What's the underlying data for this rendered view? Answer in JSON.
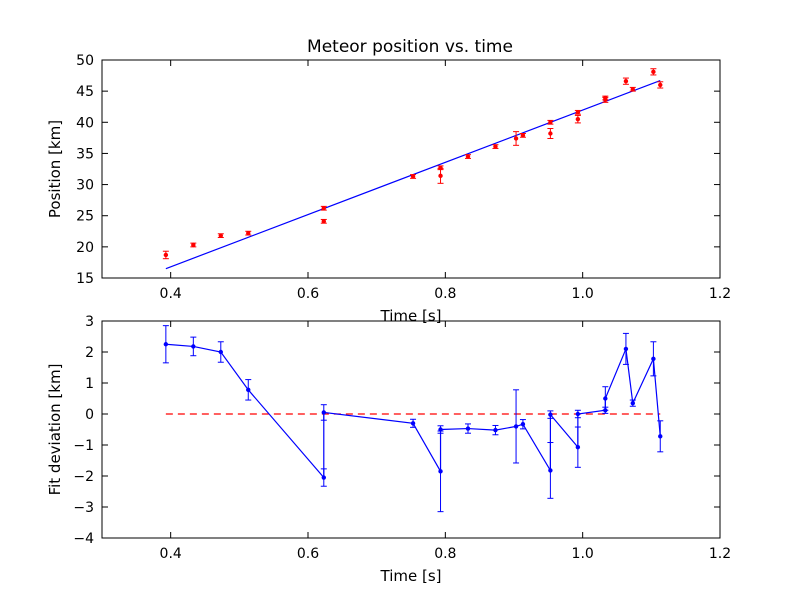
{
  "chart_data": [
    {
      "type": "scatter",
      "title": "Meteor position vs. time",
      "xlabel": "Time [s]",
      "ylabel": "Position [km]",
      "xlim": [
        0.3,
        1.2
      ],
      "ylim": [
        15,
        50
      ],
      "xticks": [
        0.4,
        0.6,
        0.8,
        1.0,
        1.2
      ],
      "xtick_labels": [
        "0.4",
        "0.6",
        "0.8",
        "1.0",
        "1.2"
      ],
      "yticks": [
        15,
        20,
        25,
        30,
        35,
        40,
        45,
        50
      ],
      "ytick_labels": [
        "15",
        "20",
        "25",
        "30",
        "35",
        "40",
        "45",
        "50"
      ],
      "grid": false,
      "colors": {
        "points": "#ff0000",
        "fit": "#0000ff"
      },
      "series": [
        {
          "kind": "errorbar-points",
          "x": [
            0.393,
            0.433,
            0.473,
            0.513,
            0.623,
            0.623,
            0.753,
            0.793,
            0.793,
            0.833,
            0.873,
            0.903,
            0.913,
            0.953,
            0.953,
            0.993,
            0.993,
            1.033,
            1.033,
            1.063,
            1.073,
            1.103,
            1.113
          ],
          "y": [
            18.7,
            20.3,
            21.8,
            22.2,
            24.1,
            26.2,
            31.3,
            31.4,
            32.7,
            34.5,
            36.1,
            37.4,
            37.9,
            38.2,
            40.0,
            40.5,
            41.6,
            43.6,
            43.9,
            46.6,
            45.3,
            48.1,
            46.0
          ],
          "yerr": [
            0.6,
            0.3,
            0.3,
            0.3,
            0.3,
            0.3,
            0.3,
            1.2,
            0.3,
            0.3,
            0.3,
            1.1,
            0.3,
            0.8,
            0.3,
            0.6,
            0.3,
            0.4,
            0.3,
            0.5,
            0.3,
            0.5,
            0.5
          ]
        },
        {
          "kind": "fit-line",
          "x": [
            0.393,
            1.113
          ],
          "y": [
            16.5,
            46.7
          ]
        }
      ]
    },
    {
      "type": "line",
      "title": "",
      "xlabel": "Time [s]",
      "ylabel": "Fit deviation [km]",
      "xlim": [
        0.3,
        1.2
      ],
      "ylim": [
        -4,
        3
      ],
      "xticks": [
        0.4,
        0.6,
        0.8,
        1.0,
        1.2
      ],
      "xtick_labels": [
        "0.4",
        "0.6",
        "0.8",
        "1.0",
        "1.2"
      ],
      "yticks": [
        -4,
        -3,
        -2,
        -1,
        0,
        1,
        2,
        3
      ],
      "ytick_labels": [
        "−4",
        "−3",
        "−2",
        "−1",
        "0",
        "1",
        "2",
        "3"
      ],
      "grid": false,
      "colors": {
        "line": "#0000ff",
        "zero": "#ff0000"
      },
      "series": [
        {
          "kind": "errorbar-line",
          "x": [
            0.393,
            0.433,
            0.473,
            0.513,
            0.623,
            0.623,
            0.753,
            0.793,
            0.793,
            0.833,
            0.873,
            0.903,
            0.913,
            0.953,
            0.953,
            0.993,
            0.993,
            1.033,
            1.033,
            1.063,
            1.073,
            1.103,
            1.113
          ],
          "y": [
            2.25,
            2.18,
            2.0,
            0.78,
            -2.05,
            0.05,
            -0.3,
            -1.85,
            -0.5,
            -0.47,
            -0.52,
            -0.4,
            -0.33,
            -1.82,
            -0.02,
            -1.07,
            0.0,
            0.12,
            0.5,
            2.1,
            0.35,
            1.78,
            -0.72
          ],
          "yerr": [
            0.6,
            0.3,
            0.33,
            0.33,
            0.28,
            0.25,
            0.13,
            1.3,
            0.12,
            0.15,
            0.15,
            1.18,
            0.15,
            0.9,
            0.12,
            0.65,
            0.12,
            0.1,
            0.38,
            0.5,
            0.1,
            0.55,
            0.5
          ]
        },
        {
          "kind": "zero-line",
          "x": [
            0.393,
            1.113
          ],
          "y": [
            0,
            0
          ]
        }
      ]
    }
  ]
}
